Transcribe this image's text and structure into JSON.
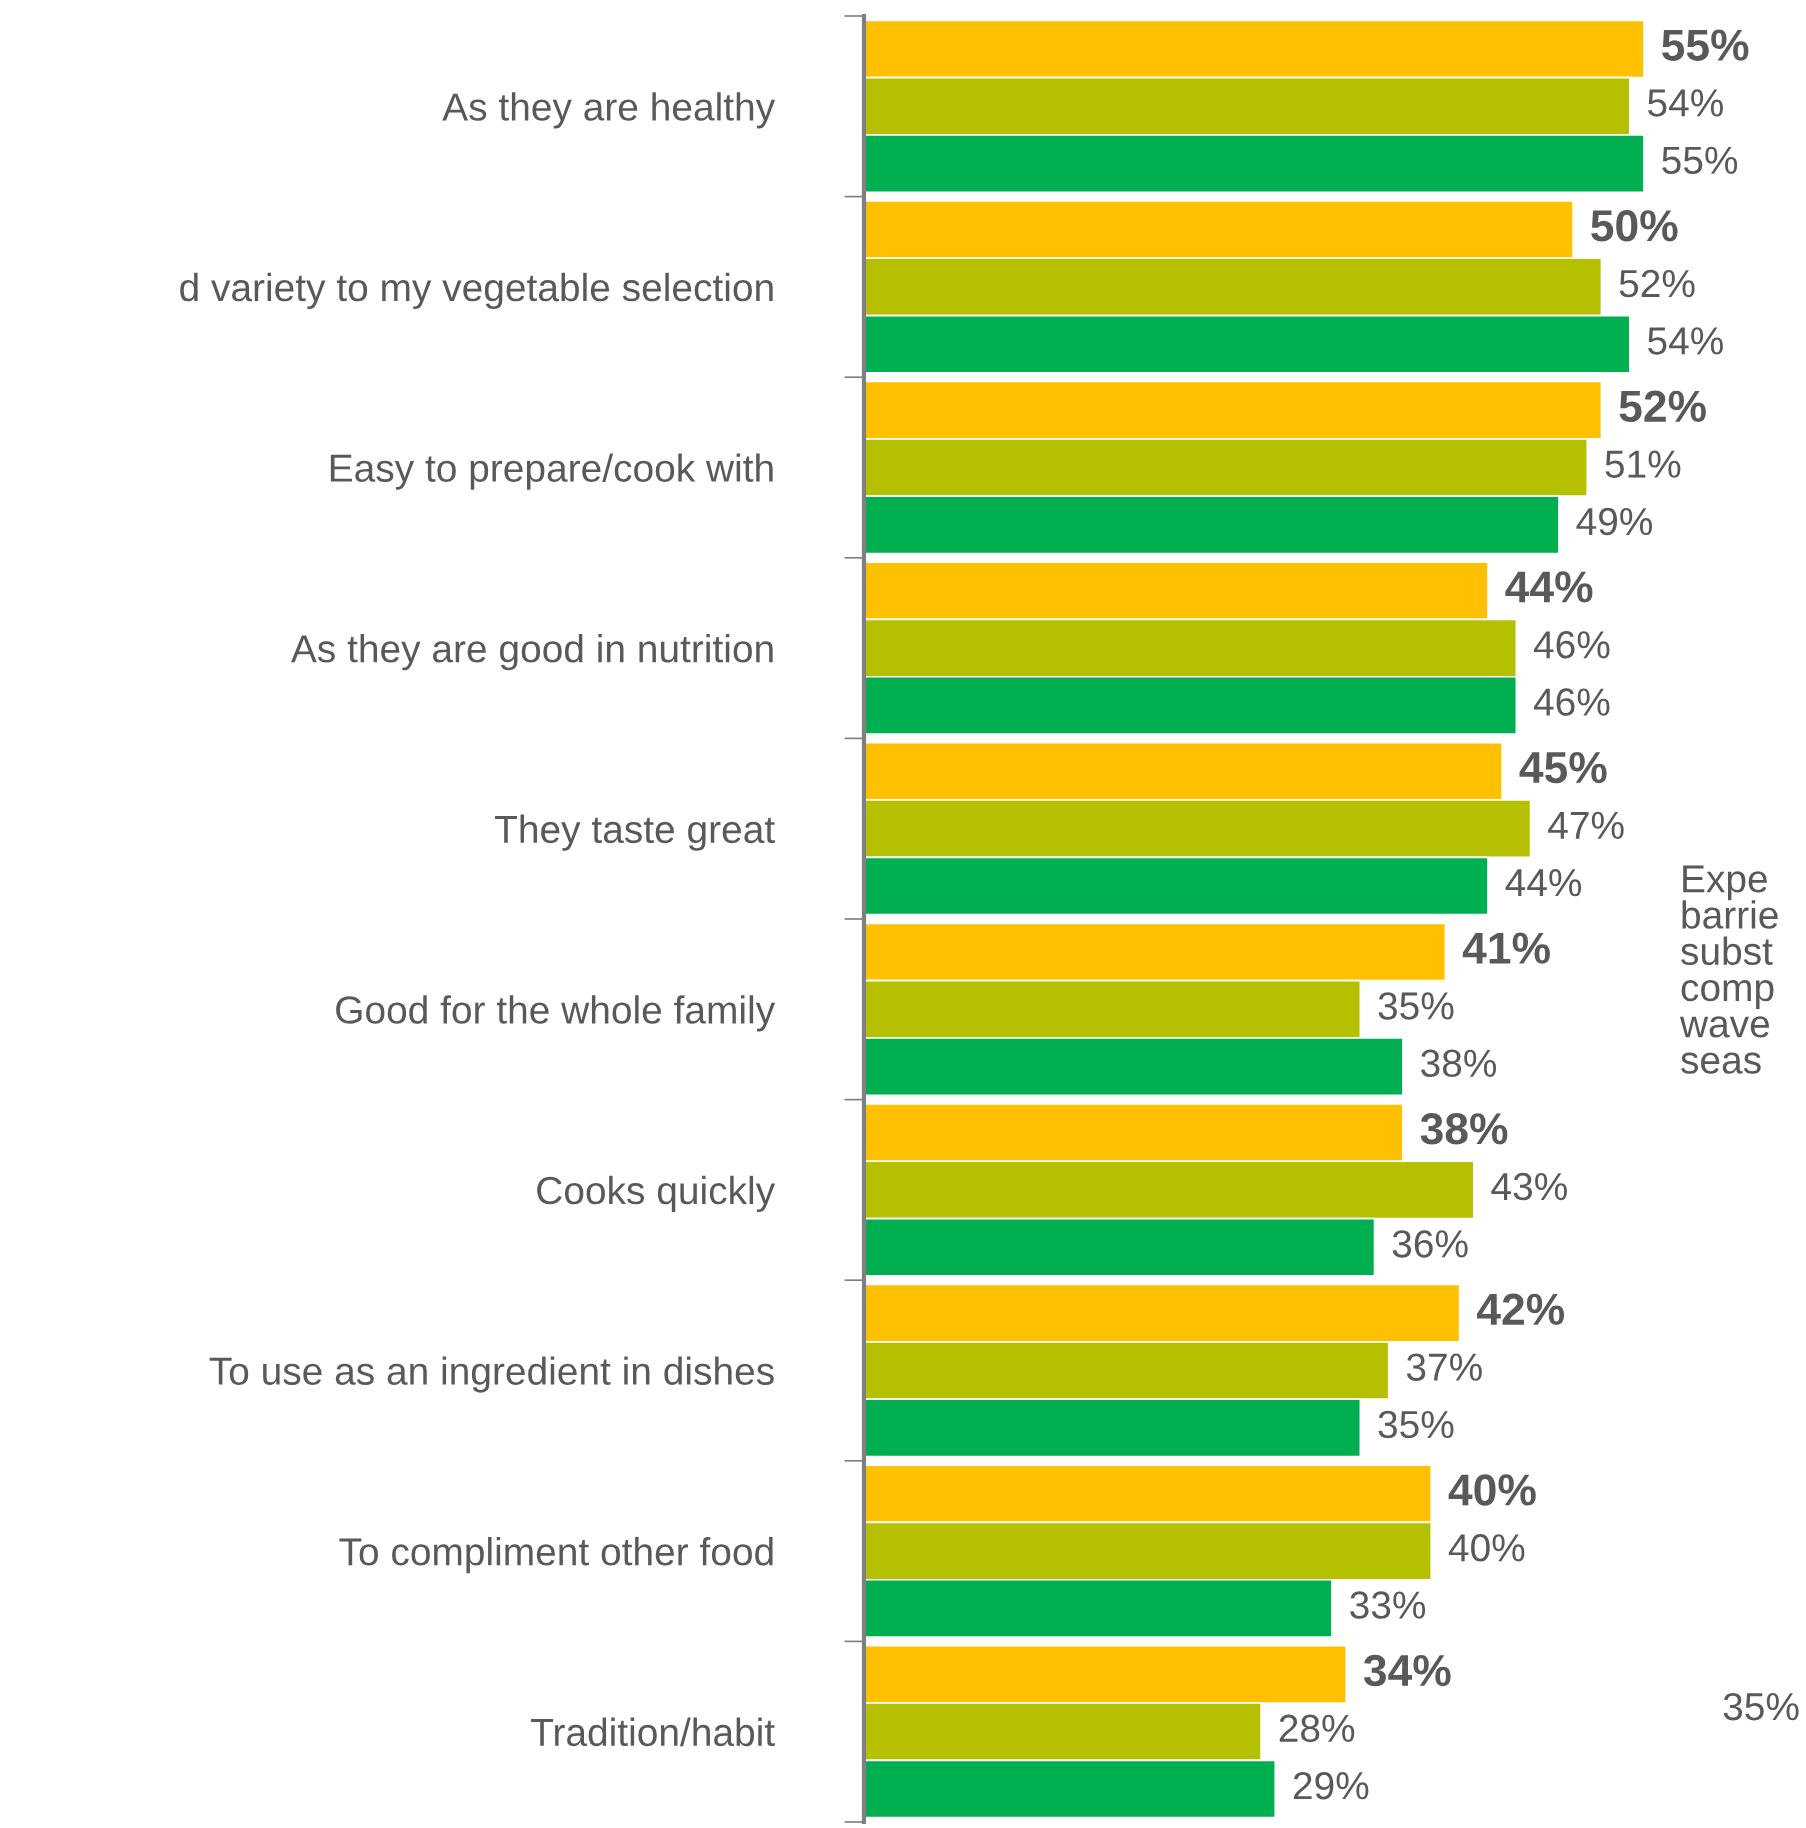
{
  "chart_data": {
    "type": "bar",
    "orientation": "horizontal",
    "categories": [
      "As they are healthy",
      "d variety to my vegetable selection",
      "Easy to prepare/cook with",
      "As they are good in nutrition",
      "They taste great",
      "Good for the whole family",
      "Cooks quickly",
      "To use as an ingredient in dishes",
      "To compliment other food",
      "Tradition/habit"
    ],
    "series": [
      {
        "color": "#ffc000",
        "values": [
          55,
          50,
          52,
          44,
          45,
          41,
          38,
          42,
          40,
          34
        ],
        "value_labels": [
          "55%",
          "50%",
          "52%",
          "44%",
          "45%",
          "41%",
          "38%",
          "42%",
          "40%",
          "34%"
        ]
      },
      {
        "color": "#b5c000",
        "values": [
          54,
          52,
          51,
          46,
          47,
          35,
          43,
          37,
          40,
          28
        ],
        "value_labels": [
          "54%",
          "52%",
          "51%",
          "46%",
          "47%",
          "35%",
          "43%",
          "37%",
          "40%",
          "28%"
        ]
      },
      {
        "color": "#00b050",
        "values": [
          55,
          54,
          49,
          46,
          44,
          38,
          36,
          35,
          33,
          29
        ],
        "value_labels": [
          "55%",
          "54%",
          "49%",
          "46%",
          "44%",
          "38%",
          "36%",
          "35%",
          "33%",
          "29%"
        ]
      }
    ],
    "annotations": [
      "Expe\nbarrie\nsubst\ncomp\nwave\nseas",
      "35%"
    ],
    "grid": false,
    "legend": false
  }
}
